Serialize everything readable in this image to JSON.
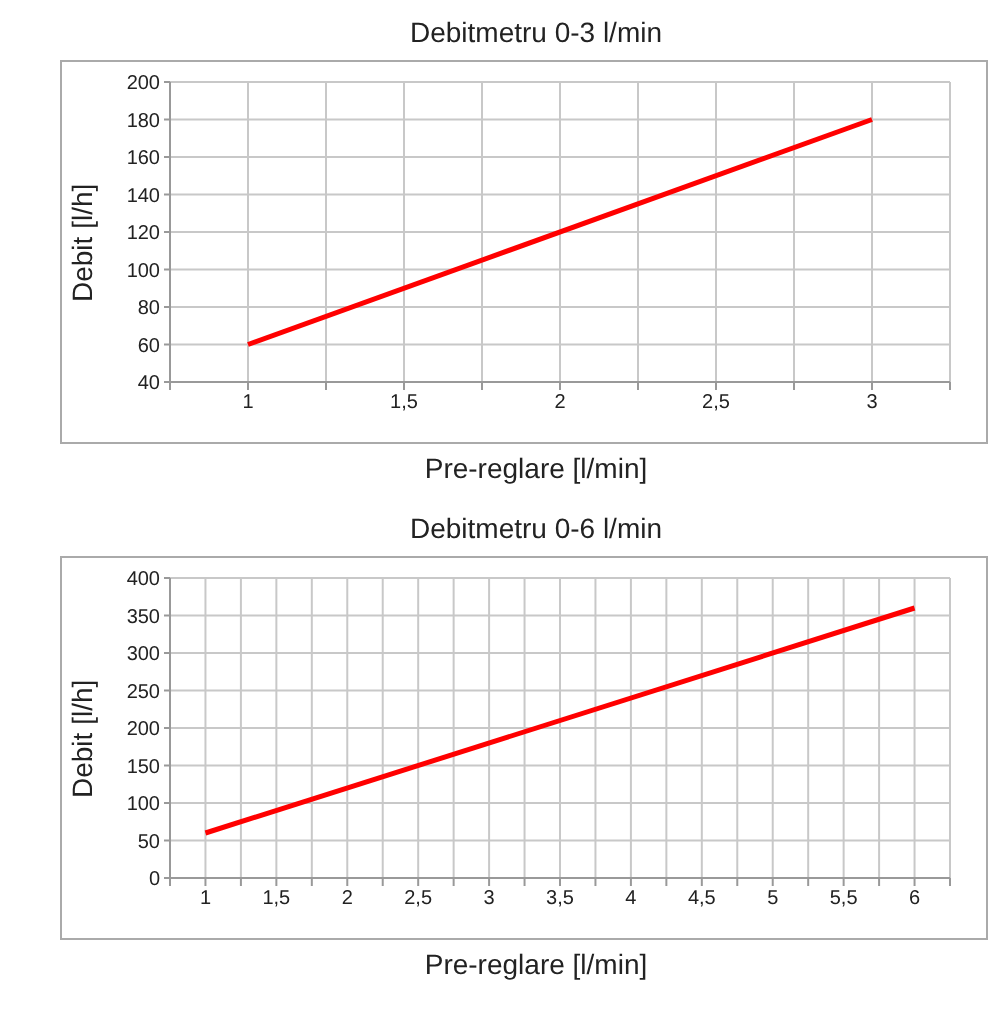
{
  "chart_data": [
    {
      "type": "line",
      "title": "Debitmetru 0-3 l/min",
      "xlabel": "Pre-reglare [l/min]",
      "ylabel": "Debit [l/h]",
      "x": [
        1,
        3
      ],
      "series": [
        {
          "color": "#ff0000",
          "values": [
            60,
            180
          ]
        }
      ],
      "xlim": [
        0.75,
        3.25
      ],
      "xticks": [
        {
          "value": 0.75,
          "label": null
        },
        1,
        {
          "value": 1.25,
          "label": null
        },
        {
          "value": 1.5,
          "label": "1,5"
        },
        {
          "value": 1.75,
          "label": null
        },
        2,
        {
          "value": 2.25,
          "label": null
        },
        {
          "value": 2.5,
          "label": "2,5"
        },
        {
          "value": 2.75,
          "label": null
        },
        3,
        {
          "value": 3.25,
          "label": null
        }
      ],
      "ylim": [
        40,
        200
      ],
      "yticks": [
        40,
        60,
        80,
        100,
        120,
        140,
        160,
        180,
        200
      ],
      "grid": true,
      "legend": false,
      "marker": "none",
      "line_style": "solid"
    },
    {
      "type": "line",
      "title": "Debitmetru 0-6 l/min",
      "xlabel": "Pre-reglare [l/min]",
      "ylabel": "Debit [l/h]",
      "x": [
        1,
        6
      ],
      "series": [
        {
          "color": "#ff0000",
          "values": [
            60,
            360
          ]
        }
      ],
      "xlim": [
        0.75,
        6.25
      ],
      "xticks": [
        {
          "value": 0.75,
          "label": null
        },
        1,
        {
          "value": 1.25,
          "label": null
        },
        {
          "value": 1.5,
          "label": "1,5"
        },
        {
          "value": 1.75,
          "label": null
        },
        2,
        {
          "value": 2.25,
          "label": null
        },
        {
          "value": 2.5,
          "label": "2,5"
        },
        {
          "value": 2.75,
          "label": null
        },
        3,
        {
          "value": 3.25,
          "label": null
        },
        {
          "value": 3.5,
          "label": "3,5"
        },
        {
          "value": 3.75,
          "label": null
        },
        4,
        {
          "value": 4.25,
          "label": null
        },
        {
          "value": 4.5,
          "label": "4,5"
        },
        {
          "value": 4.75,
          "label": null
        },
        5,
        {
          "value": 5.25,
          "label": null
        },
        {
          "value": 5.5,
          "label": "5,5"
        },
        {
          "value": 5.75,
          "label": null
        },
        6,
        {
          "value": 6.25,
          "label": null
        }
      ],
      "ylim": [
        0,
        400
      ],
      "yticks": [
        0,
        50,
        100,
        150,
        200,
        250,
        300,
        350,
        400
      ],
      "grid": true,
      "legend": false,
      "marker": "none",
      "line_style": "solid"
    }
  ]
}
